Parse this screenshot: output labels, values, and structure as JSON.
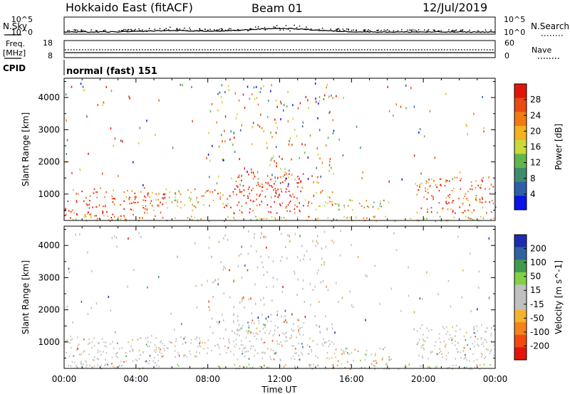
{
  "header": {
    "radar": "Hokkaido East (fitACF)",
    "beam": "Beam 01",
    "date": "12/Jul/2019"
  },
  "noise_panel": {
    "left_label": "N.Sky",
    "left_ticks": [
      "10^5",
      "10^0"
    ],
    "right_ticks": [
      "10^5",
      "10^0"
    ],
    "right_label": "N.Search"
  },
  "freq_panel": {
    "left_label_1": "Freq.",
    "left_label_2": "[MHz]",
    "left_ticks": [
      "18",
      "8"
    ],
    "right_ticks": [
      "60",
      "0"
    ],
    "right_label": "Nave"
  },
  "cpid": {
    "label": "CPID",
    "value": "normal (fast) 151"
  },
  "colors": {
    "power_scale": [
      "#0a14e6",
      "#2d5fa8",
      "#3c8c6e",
      "#62b54c",
      "#c9d93a",
      "#f4b21e",
      "#f07a16",
      "#e84a0f",
      "#e3150b"
    ],
    "velocity_scale": [
      "#e3150b",
      "#f24a0c",
      "#f6821c",
      "#f5b230",
      "#c0c0c0",
      "#c0c0c0",
      "#83d048",
      "#3f9a4e",
      "#2f63a0",
      "#1e2bb0"
    ]
  },
  "chart_data": [
    {
      "type": "heatmap",
      "name": "power",
      "x": [
        "00:00",
        "04:00",
        "08:00",
        "12:00",
        "16:00",
        "20:00",
        "00:00"
      ],
      "xlim_hours": [
        0,
        24
      ],
      "ylabel": "Slant Range [km]",
      "y_ticks": [
        "4000",
        "3000",
        "2000",
        "1000"
      ],
      "ylim": [
        180,
        4600
      ],
      "colorbar": {
        "label": "Power [dB]",
        "ticks": [
          "28",
          "24",
          "20",
          "16",
          "12",
          "8",
          "4"
        ],
        "range": [
          0,
          32
        ]
      },
      "regions": [
        {
          "t0": 0.0,
          "t1": 5.6,
          "r0": 260,
          "r1": 1220,
          "level": 0.82
        },
        {
          "t0": 5.6,
          "t1": 7.4,
          "r0": 500,
          "r1": 1200,
          "level": 0.6
        },
        {
          "t0": 7.4,
          "t1": 9.4,
          "r0": 600,
          "r1": 1150,
          "level": 0.75
        },
        {
          "t0": 9.4,
          "t1": 13.4,
          "r0": 420,
          "r1": 1700,
          "level": 0.92
        },
        {
          "t0": 13.4,
          "t1": 15.0,
          "r0": 500,
          "r1": 1150,
          "level": 0.7
        },
        {
          "t0": 15.0,
          "t1": 18.2,
          "r0": 520,
          "r1": 850,
          "level": 0.5
        },
        {
          "t0": 19.6,
          "t1": 24.0,
          "r0": 430,
          "r1": 1550,
          "level": 0.8
        },
        {
          "t0": 0.0,
          "t1": 24.0,
          "r0": 180,
          "r1": 330,
          "level": 0.6
        }
      ]
    },
    {
      "type": "heatmap",
      "name": "velocity",
      "x": [
        "00:00",
        "04:00",
        "08:00",
        "12:00",
        "16:00",
        "20:00",
        "00:00"
      ],
      "xlim_hours": [
        0,
        24
      ],
      "xlabel": "Time UT",
      "ylabel": "Slant Range [km]",
      "y_ticks": [
        "4000",
        "3000",
        "2000",
        "1000"
      ],
      "ylim": [
        180,
        4600
      ],
      "colorbar": {
        "label": "Velocity [m s^-1]",
        "ticks": [
          "200",
          "100",
          "50",
          "15",
          "-15",
          "-50",
          "-100",
          "-200"
        ],
        "range": [
          -250,
          250
        ]
      },
      "regions": [
        {
          "t0": 0.0,
          "t1": 5.6,
          "r0": 260,
          "r1": 1220,
          "level": 0.5
        },
        {
          "t0": 5.6,
          "t1": 7.4,
          "r0": 500,
          "r1": 1200,
          "level": 0.5
        },
        {
          "t0": 7.4,
          "t1": 9.4,
          "r0": 600,
          "r1": 1150,
          "level": 0.5
        },
        {
          "t0": 9.4,
          "t1": 13.4,
          "r0": 420,
          "r1": 1700,
          "level": 0.5
        },
        {
          "t0": 13.4,
          "t1": 15.0,
          "r0": 500,
          "r1": 1150,
          "level": 0.5
        },
        {
          "t0": 15.0,
          "t1": 18.2,
          "r0": 300,
          "r1": 850,
          "level": 0.6
        },
        {
          "t0": 19.6,
          "t1": 24.0,
          "r0": 430,
          "r1": 1550,
          "level": 0.5
        },
        {
          "t0": 0.0,
          "t1": 24.0,
          "r0": 180,
          "r1": 330,
          "level": 0.62
        }
      ]
    }
  ]
}
